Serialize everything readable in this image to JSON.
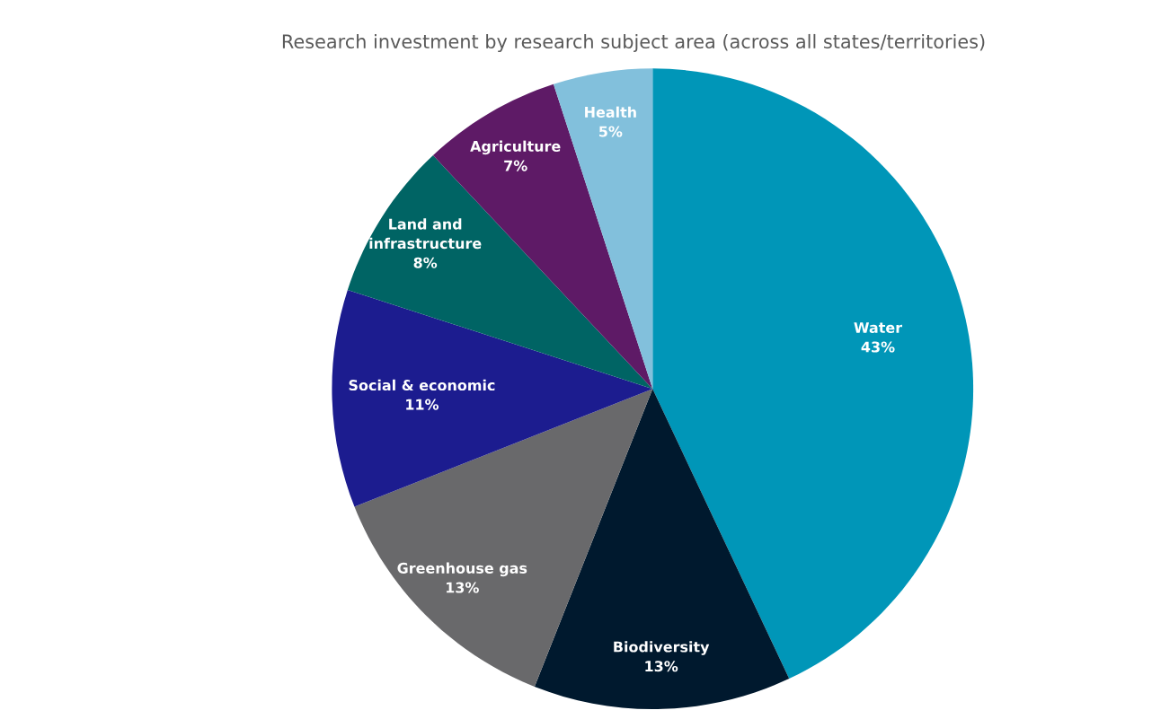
{
  "chart_data": {
    "type": "pie",
    "title": "Research investment by research subject area (across all states/territories)",
    "categories": [
      "Water",
      "Biodiversity",
      "Greenhouse gas",
      "Social & economic",
      "Land and\ninfrastructure",
      "Agriculture",
      "Health"
    ],
    "values": [
      43,
      13,
      13,
      11,
      8,
      7,
      5
    ],
    "value_labels": [
      "43%",
      "13%",
      "13%",
      "11%",
      "8%",
      "7%",
      "5%"
    ],
    "colors": [
      "#0096b8",
      "#00192e",
      "#69696b",
      "#1c1c8f",
      "#006464",
      "#5e1a66",
      "#82c0dc"
    ],
    "legend": false
  }
}
